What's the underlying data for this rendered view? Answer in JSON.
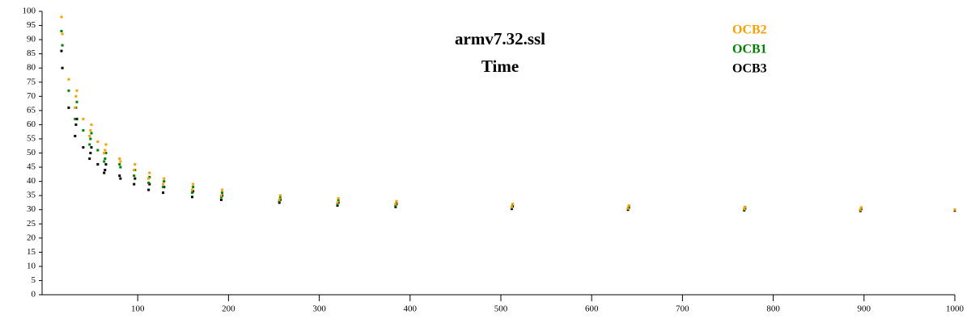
{
  "chart_data": {
    "type": "scatter",
    "title": "armv7.32.ssl",
    "subtitle": "Time",
    "x": [
      16,
      17,
      24,
      31,
      32,
      33,
      40,
      47,
      48,
      49,
      56,
      63,
      64,
      65,
      80,
      81,
      96,
      97,
      112,
      113,
      128,
      129,
      160,
      161,
      192,
      193,
      256,
      257,
      320,
      321,
      384,
      385,
      512,
      513,
      640,
      641,
      768,
      769,
      896,
      897,
      1000
    ],
    "series": [
      {
        "name": "OCB2",
        "color": "#f5a000",
        "values": [
          98,
          92,
          76,
          66,
          70,
          72,
          62,
          56,
          58,
          60,
          54,
          50,
          51,
          53,
          48,
          47,
          44,
          46,
          41,
          43,
          39,
          41,
          37,
          39,
          35,
          37,
          33.5,
          35,
          32.5,
          34,
          32,
          33,
          31,
          32,
          30.5,
          31.5,
          30.3,
          31,
          30,
          30.8,
          30
        ]
      },
      {
        "name": "OCB1",
        "color": "#008000",
        "values": [
          93,
          88,
          72,
          62,
          66,
          68,
          58,
          53,
          55,
          57,
          51,
          47,
          48,
          50,
          46,
          45,
          42,
          44,
          39.5,
          41.5,
          38,
          40,
          36,
          38,
          34.5,
          36,
          33,
          34.5,
          32,
          33.5,
          31.5,
          32.5,
          30.7,
          31.7,
          30.3,
          31.2,
          30,
          30.8,
          29.8,
          30.6,
          30
        ]
      },
      {
        "name": "OCB3",
        "color": "#000000",
        "values": [
          86,
          80,
          66,
          56,
          60,
          62,
          52,
          48,
          50,
          52,
          46,
          43,
          44,
          46,
          42,
          41,
          39,
          41,
          37,
          39,
          36,
          38,
          34.5,
          36.5,
          33.5,
          35,
          32.5,
          33.5,
          31.5,
          32.5,
          31,
          32,
          30.3,
          31.2,
          30,
          30.8,
          29.8,
          30.5,
          29.6,
          30.3,
          29.7
        ]
      }
    ],
    "xlim": [
      0,
      1000
    ],
    "xticks": [
      100,
      200,
      300,
      400,
      500,
      600,
      700,
      800,
      900,
      1000
    ],
    "ylim": [
      0,
      100
    ],
    "yticks": [
      0,
      5,
      10,
      15,
      20,
      25,
      30,
      35,
      40,
      45,
      50,
      55,
      60,
      65,
      70,
      75,
      80,
      85,
      90,
      95,
      100
    ]
  }
}
